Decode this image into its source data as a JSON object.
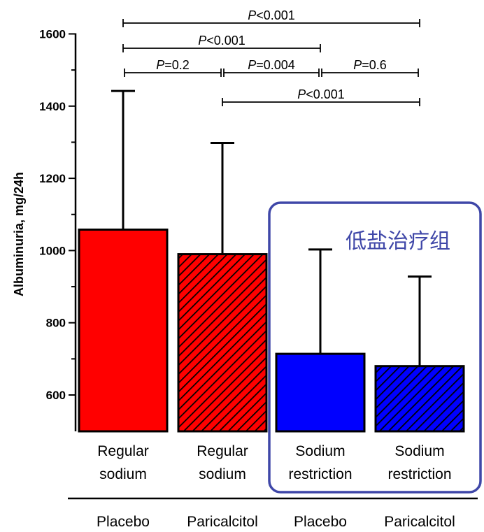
{
  "chart_data": {
    "type": "bar",
    "ylabel": "Albuminuria, mg/24h",
    "ylim": [
      500,
      1600
    ],
    "yticks": [
      600,
      800,
      1000,
      1200,
      1400,
      1600
    ],
    "ytick_labels": [
      "600",
      "800",
      "1000",
      "1200",
      "1400",
      "1600"
    ],
    "bars": [
      {
        "label_line1": "Regular",
        "label_line2": "sodium",
        "group": "Placebo",
        "value": 1058,
        "error_upper": 1442,
        "color": "#ff0000",
        "hatched": false
      },
      {
        "label_line1": "Regular",
        "label_line2": "sodium",
        "group": "Paricalcitol",
        "value": 990,
        "error_upper": 1298,
        "color": "#ff0000",
        "hatched": true
      },
      {
        "label_line1": "Sodium",
        "label_line2": "restriction",
        "group": "Placebo",
        "value": 714,
        "error_upper": 1003,
        "color": "#0000ff",
        "hatched": false
      },
      {
        "label_line1": "Sodium",
        "label_line2": "restriction",
        "group": "Paricalcitol",
        "value": 680,
        "error_upper": 928,
        "color": "#0000ff",
        "hatched": true
      }
    ],
    "comparisons": [
      {
        "from": 0,
        "to": 3,
        "italic": "P",
        "rest": "<0.001"
      },
      {
        "from": 0,
        "to": 2,
        "italic": "P",
        "rest": "<0.001"
      },
      {
        "from": 0,
        "to": 1,
        "italic": "P",
        "rest": "=0.2"
      },
      {
        "from": 1,
        "to": 2,
        "italic": "P",
        "rest": "=0.004"
      },
      {
        "from": 2,
        "to": 3,
        "italic": "P",
        "rest": "=0.6"
      },
      {
        "from": 1,
        "to": 3,
        "italic": "P",
        "rest": "<0.001"
      }
    ],
    "highlight_box_label": "低盐治疗组",
    "highlight_box_color": "#3f47a8"
  }
}
